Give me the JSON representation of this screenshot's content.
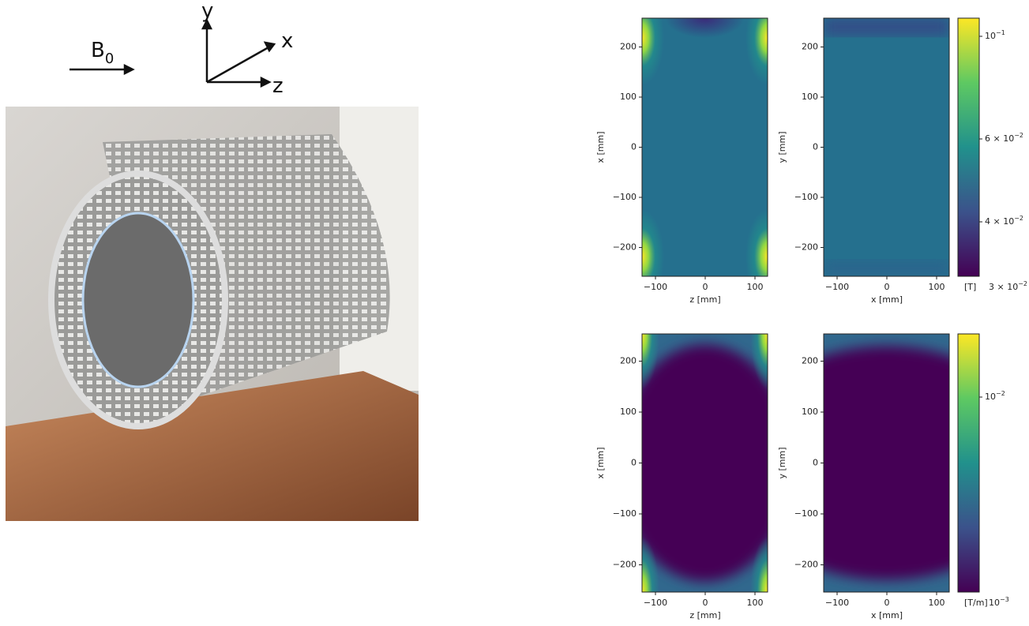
{
  "axes_diagram": {
    "field": "B",
    "field_sub": "0",
    "y": "y",
    "x": "x",
    "z": "z"
  },
  "panels": [
    {
      "ylabel": "x [mm]",
      "xlabel": "z [mm]",
      "yticks": [
        "200",
        "100",
        "0",
        "−100",
        "−200"
      ],
      "xticks": [
        "−100",
        "0",
        "100"
      ]
    },
    {
      "ylabel": "y [mm]",
      "xlabel": "x [mm]",
      "yticks": [
        "200",
        "100",
        "0",
        "−100",
        "−200"
      ],
      "xticks": [
        "−100",
        "0",
        "100"
      ]
    },
    {
      "ylabel": "x [mm]",
      "xlabel": "z [mm]",
      "yticks": [
        "200",
        "100",
        "0",
        "−100",
        "−200"
      ],
      "xticks": [
        "−100",
        "0",
        "100"
      ]
    },
    {
      "ylabel": "y [mm]",
      "xlabel": "x [mm]",
      "yticks": [
        "200",
        "100",
        "0",
        "−100",
        "−200"
      ],
      "xticks": [
        "−100",
        "0",
        "100"
      ]
    }
  ],
  "colorbars": [
    {
      "unit": "[T]",
      "ticks": [
        {
          "base": "10",
          "exp": "−1"
        },
        {
          "base": "6 × 10",
          "exp": "−2"
        },
        {
          "base": "4 × 10",
          "exp": "−2"
        },
        {
          "base": "3 × 10",
          "exp": "−2"
        }
      ]
    },
    {
      "unit": "[T/m]",
      "ticks": [
        {
          "base": "10",
          "exp": "−2"
        },
        {
          "base": "10",
          "exp": "−3"
        }
      ]
    }
  ]
}
